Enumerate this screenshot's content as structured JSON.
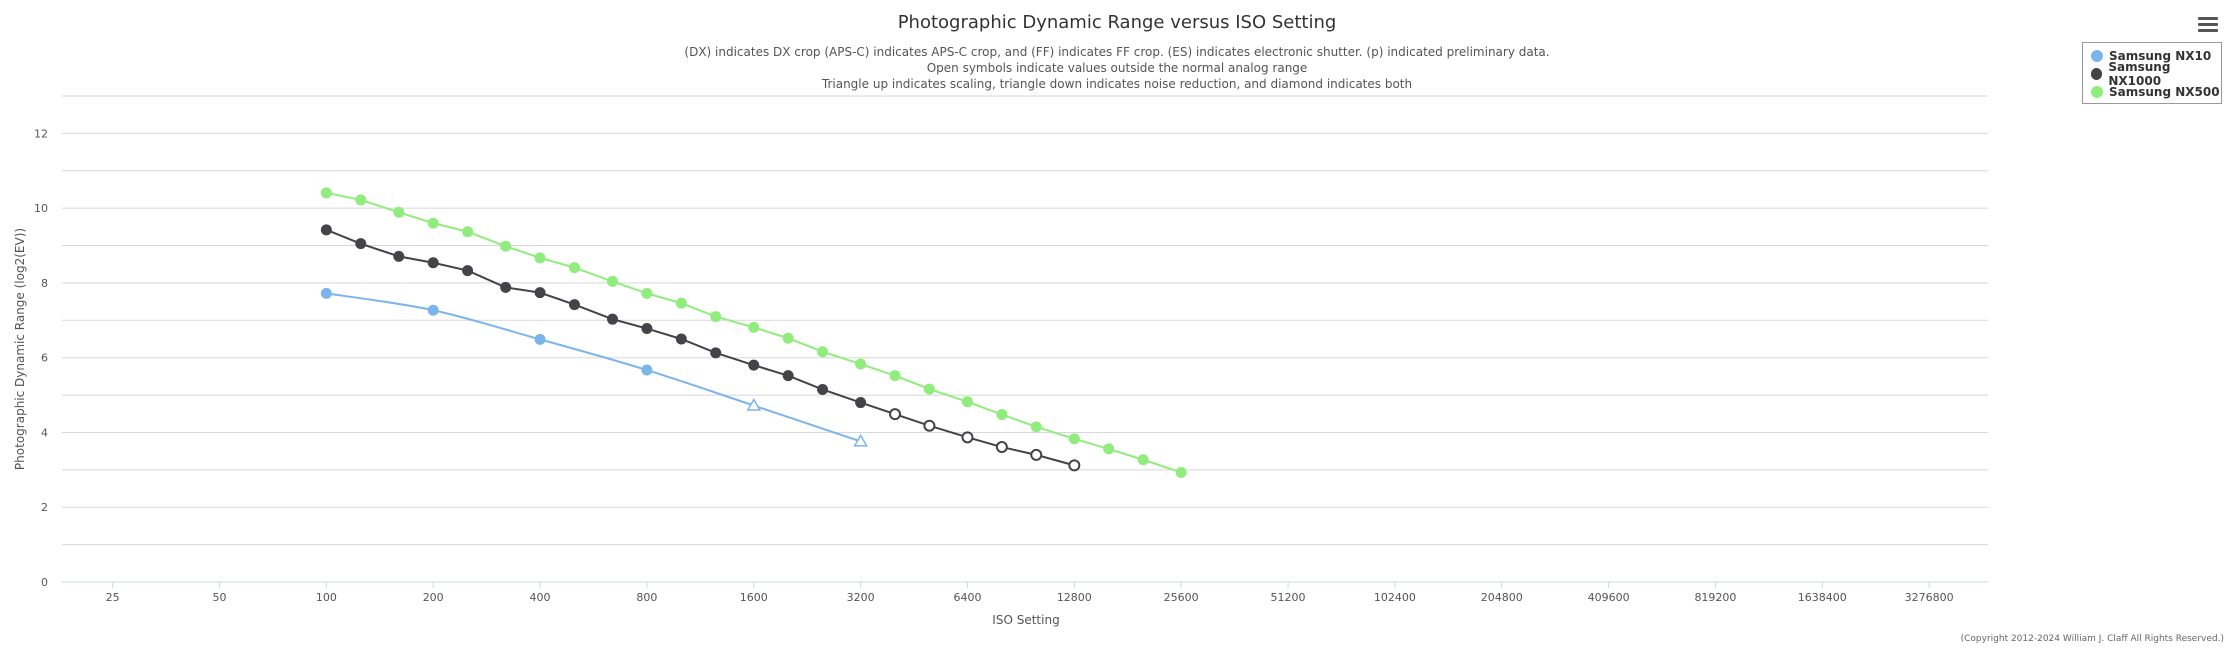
{
  "chart_data": {
    "type": "line",
    "title": "Photographic Dynamic Range versus ISO Setting",
    "subtitle_lines": [
      "(DX) indicates DX crop (APS-C) indicates APS-C crop, and (FF) indicates FF crop. (ES) indicates electronic shutter. (p) indicated preliminary data.",
      "Open symbols indicate values outside the normal analog range",
      "Triangle up indicates scaling, triangle down indicates noise reduction, and diamond indicates both"
    ],
    "xlabel": "ISO Setting",
    "ylabel": "Photographic Dynamic Range (log2(EV))",
    "x_scale": "log2",
    "x_ticks": [
      25,
      50,
      100,
      200,
      400,
      800,
      1600,
      3200,
      6400,
      12800,
      25600,
      51200,
      102400,
      204800,
      409600,
      819200,
      1638400,
      3276800
    ],
    "xlim": [
      18,
      4800000
    ],
    "ylim": [
      0,
      13
    ],
    "y_ticks": [
      0,
      2,
      4,
      6,
      8,
      10,
      12
    ],
    "grid": true,
    "legend_position": "top-right",
    "series": [
      {
        "name": "Samsung NX10",
        "color": "#7cb5ec",
        "smooth": true,
        "points": [
          {
            "x": 100,
            "y": 7.72,
            "marker": "circle"
          },
          {
            "x": 200,
            "y": 7.27,
            "marker": "circle"
          },
          {
            "x": 400,
            "y": 6.49,
            "marker": "circle"
          },
          {
            "x": 800,
            "y": 5.67,
            "marker": "circle"
          },
          {
            "x": 1600,
            "y": 4.72,
            "marker": "triangle-up-open"
          },
          {
            "x": 3200,
            "y": 3.76,
            "marker": "triangle-up-open"
          }
        ]
      },
      {
        "name": "Samsung NX1000",
        "color": "#434348",
        "smooth": false,
        "points": [
          {
            "x": 100,
            "y": 9.42,
            "marker": "circle"
          },
          {
            "x": 125,
            "y": 9.05,
            "marker": "circle"
          },
          {
            "x": 160,
            "y": 8.71,
            "marker": "circle"
          },
          {
            "x": 200,
            "y": 8.54,
            "marker": "circle"
          },
          {
            "x": 250,
            "y": 8.33,
            "marker": "circle"
          },
          {
            "x": 320,
            "y": 7.88,
            "marker": "circle"
          },
          {
            "x": 400,
            "y": 7.74,
            "marker": "circle"
          },
          {
            "x": 500,
            "y": 7.42,
            "marker": "circle"
          },
          {
            "x": 640,
            "y": 7.03,
            "marker": "circle"
          },
          {
            "x": 800,
            "y": 6.78,
            "marker": "circle"
          },
          {
            "x": 1000,
            "y": 6.5,
            "marker": "circle"
          },
          {
            "x": 1250,
            "y": 6.13,
            "marker": "circle"
          },
          {
            "x": 1600,
            "y": 5.8,
            "marker": "circle"
          },
          {
            "x": 2000,
            "y": 5.52,
            "marker": "circle"
          },
          {
            "x": 2500,
            "y": 5.15,
            "marker": "circle"
          },
          {
            "x": 3200,
            "y": 4.8,
            "marker": "circle"
          },
          {
            "x": 4000,
            "y": 4.49,
            "marker": "circle-open"
          },
          {
            "x": 5000,
            "y": 4.18,
            "marker": "circle-open"
          },
          {
            "x": 6400,
            "y": 3.87,
            "marker": "circle-open"
          },
          {
            "x": 8000,
            "y": 3.61,
            "marker": "circle-open"
          },
          {
            "x": 10000,
            "y": 3.4,
            "marker": "circle-open"
          },
          {
            "x": 12800,
            "y": 3.12,
            "marker": "circle-open"
          }
        ]
      },
      {
        "name": "Samsung NX500",
        "color": "#90ed7d",
        "smooth": false,
        "points": [
          {
            "x": 100,
            "y": 10.41,
            "marker": "circle"
          },
          {
            "x": 125,
            "y": 10.22,
            "marker": "circle"
          },
          {
            "x": 160,
            "y": 9.89,
            "marker": "circle"
          },
          {
            "x": 200,
            "y": 9.6,
            "marker": "circle"
          },
          {
            "x": 250,
            "y": 9.37,
            "marker": "circle"
          },
          {
            "x": 320,
            "y": 8.98,
            "marker": "circle"
          },
          {
            "x": 400,
            "y": 8.67,
            "marker": "circle"
          },
          {
            "x": 500,
            "y": 8.41,
            "marker": "circle"
          },
          {
            "x": 640,
            "y": 8.04,
            "marker": "circle"
          },
          {
            "x": 800,
            "y": 7.72,
            "marker": "circle"
          },
          {
            "x": 1000,
            "y": 7.46,
            "marker": "circle"
          },
          {
            "x": 1250,
            "y": 7.1,
            "marker": "circle"
          },
          {
            "x": 1600,
            "y": 6.81,
            "marker": "circle"
          },
          {
            "x": 2000,
            "y": 6.52,
            "marker": "circle"
          },
          {
            "x": 2500,
            "y": 6.16,
            "marker": "circle"
          },
          {
            "x": 3200,
            "y": 5.83,
            "marker": "circle"
          },
          {
            "x": 4000,
            "y": 5.52,
            "marker": "circle"
          },
          {
            "x": 5000,
            "y": 5.16,
            "marker": "circle"
          },
          {
            "x": 6400,
            "y": 4.82,
            "marker": "circle"
          },
          {
            "x": 8000,
            "y": 4.48,
            "marker": "circle"
          },
          {
            "x": 10000,
            "y": 4.15,
            "marker": "circle"
          },
          {
            "x": 12800,
            "y": 3.83,
            "marker": "circle"
          },
          {
            "x": 16000,
            "y": 3.56,
            "marker": "circle"
          },
          {
            "x": 20000,
            "y": 3.27,
            "marker": "circle"
          },
          {
            "x": 25600,
            "y": 2.93,
            "marker": "circle"
          }
        ]
      }
    ]
  },
  "copyright": "(Copyright 2012-2024 William J. Claff All Rights Reserved.)"
}
